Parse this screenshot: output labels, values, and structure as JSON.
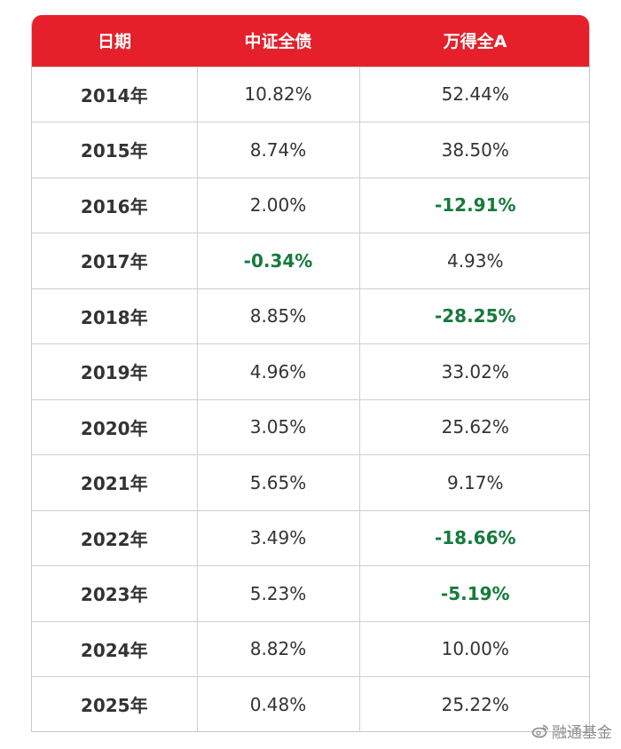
{
  "chart_data": {
    "type": "table",
    "columns": [
      "日期",
      "中证全债",
      "万得全A"
    ],
    "rows": [
      {
        "date": "2014年",
        "bond": "10.82%",
        "wind_a": "52.44%"
      },
      {
        "date": "2015年",
        "bond": "8.74%",
        "wind_a": "38.50%"
      },
      {
        "date": "2016年",
        "bond": "2.00%",
        "wind_a": "-12.91%"
      },
      {
        "date": "2017年",
        "bond": "-0.34%",
        "wind_a": "4.93%"
      },
      {
        "date": "2018年",
        "bond": "8.85%",
        "wind_a": "-28.25%"
      },
      {
        "date": "2019年",
        "bond": "4.96%",
        "wind_a": "33.02%"
      },
      {
        "date": "2020年",
        "bond": "3.05%",
        "wind_a": "25.62%"
      },
      {
        "date": "2021年",
        "bond": "5.65%",
        "wind_a": "9.17%"
      },
      {
        "date": "2022年",
        "bond": "3.49%",
        "wind_a": "-18.66%"
      },
      {
        "date": "2023年",
        "bond": "5.23%",
        "wind_a": "-5.19%"
      },
      {
        "date": "2024年",
        "bond": "8.82%",
        "wind_a": "10.00%"
      },
      {
        "date": "2025年",
        "bond": "0.48%",
        "wind_a": "25.22%"
      }
    ]
  },
  "colors": {
    "header_bg": "#e5202a",
    "header_text": "#ffffff",
    "negative": "#167a3c",
    "text": "#333333"
  },
  "watermark": {
    "text": "融通基金",
    "icon": "weibo-icon"
  }
}
